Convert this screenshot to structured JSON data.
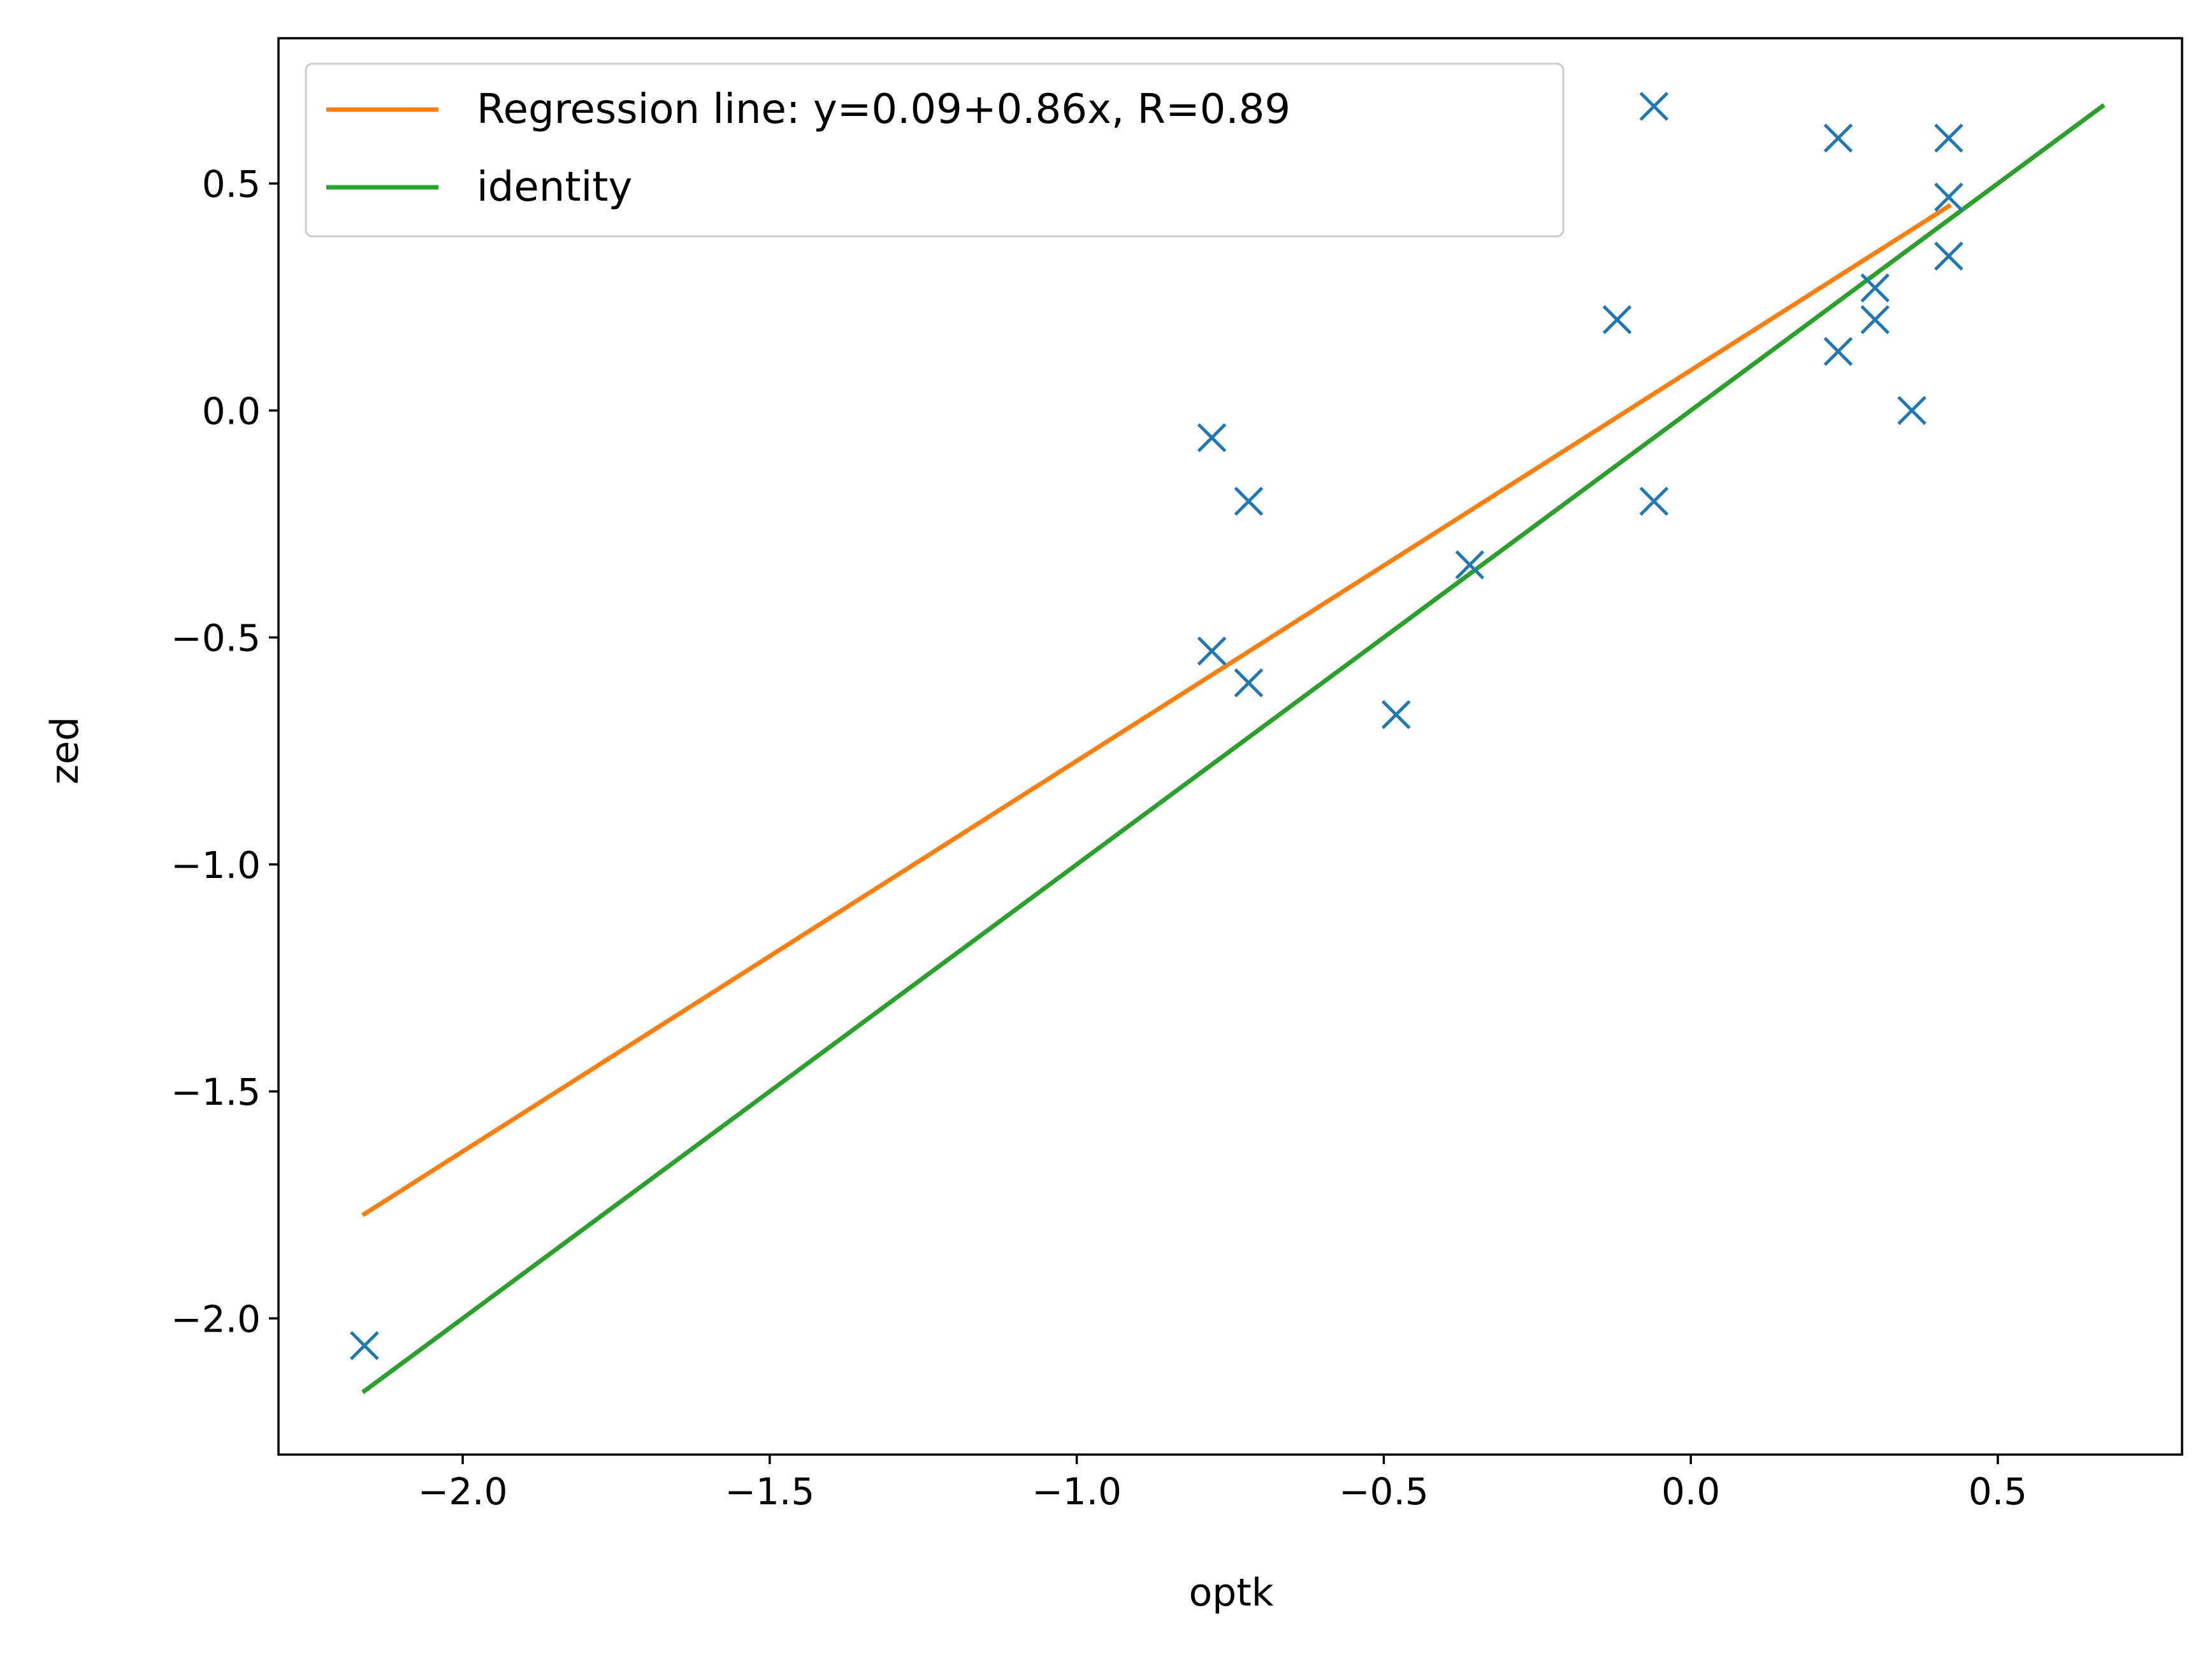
{
  "chart_data": {
    "type": "scatter",
    "xlabel": "optk",
    "ylabel": "zed",
    "xlim": [
      -2.3,
      0.8
    ],
    "ylim": [
      -2.3,
      0.82
    ],
    "xticks": [
      -2.0,
      -1.5,
      -1.0,
      -0.5,
      0.0,
      0.5
    ],
    "xtick_labels": [
      "−2.0",
      "−1.5",
      "−1.0",
      "−0.5",
      "0.0",
      "0.5"
    ],
    "yticks": [
      -2.0,
      -1.5,
      -1.0,
      -0.5,
      0.0,
      0.5
    ],
    "ytick_labels": [
      "−2.0",
      "−1.5",
      "−1.0",
      "−0.5",
      "0.0",
      "0.5"
    ],
    "grid": false,
    "legend_position": "top-left",
    "scatter": {
      "marker": "x",
      "color": "#1f77b4",
      "points": [
        {
          "x": -2.16,
          "y": -2.06
        },
        {
          "x": -0.78,
          "y": -0.06
        },
        {
          "x": -0.72,
          "y": -0.2
        },
        {
          "x": -0.78,
          "y": -0.53
        },
        {
          "x": -0.72,
          "y": -0.6
        },
        {
          "x": -0.48,
          "y": -0.67
        },
        {
          "x": -0.36,
          "y": -0.34
        },
        {
          "x": -0.12,
          "y": 0.2
        },
        {
          "x": -0.06,
          "y": 0.67
        },
        {
          "x": -0.06,
          "y": -0.2
        },
        {
          "x": 0.24,
          "y": 0.6
        },
        {
          "x": 0.24,
          "y": 0.13
        },
        {
          "x": 0.3,
          "y": 0.27
        },
        {
          "x": 0.3,
          "y": 0.2
        },
        {
          "x": 0.36,
          "y": 0.0
        },
        {
          "x": 0.42,
          "y": 0.6
        },
        {
          "x": 0.42,
          "y": 0.47
        },
        {
          "x": 0.42,
          "y": 0.34
        }
      ]
    },
    "series": [
      {
        "name": "Regression line: y=0.09+0.86x, R=0.89",
        "color": "#ff7f0e",
        "x": [
          -2.16,
          0.42
        ],
        "y": [
          -1.77,
          0.45
        ]
      },
      {
        "name": "identity",
        "color": "#2ca02c",
        "x": [
          -2.16,
          0.67
        ],
        "y": [
          -2.16,
          0.67
        ]
      }
    ]
  }
}
